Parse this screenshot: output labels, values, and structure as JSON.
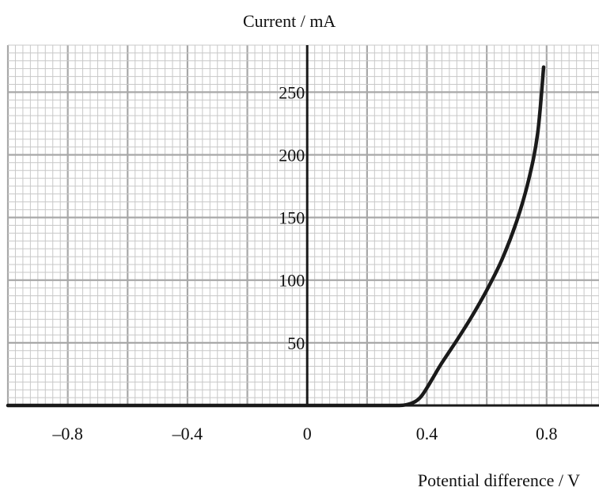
{
  "chart_data": {
    "type": "line",
    "title": "",
    "xlabel": "Potential difference / V",
    "ylabel": "Current / mA",
    "xlim": [
      -1.0,
      0.975
    ],
    "ylim": [
      0,
      287.5
    ],
    "x_ticks": [
      -0.8,
      -0.4,
      0,
      0.4,
      0.8
    ],
    "x_tick_labels": [
      "–0.8",
      "–0.4",
      "0",
      "0.4",
      "0.8"
    ],
    "y_ticks": [
      50,
      100,
      150,
      200,
      250
    ],
    "y_tick_labels": [
      "50",
      "100",
      "150",
      "200",
      "250"
    ],
    "grid": true,
    "grid_minor_x": 0.025,
    "grid_minor_y": 6.25,
    "grid_major_x": 0.2,
    "grid_major_y": 50,
    "colors": {
      "curve": "#1a1a1a",
      "grid_minor": "#c8c8c8",
      "grid_major": "#a8a8a8",
      "axis": "#1a1a1a"
    },
    "series": [
      {
        "name": "",
        "x": [
          -1.0,
          -0.5,
          0,
          0.2,
          0.3,
          0.33,
          0.36,
          0.38,
          0.4,
          0.42,
          0.45,
          0.5,
          0.55,
          0.6,
          0.65,
          0.7,
          0.74,
          0.77,
          0.79
        ],
        "y": [
          0,
          0,
          0,
          0,
          0,
          0.5,
          3,
          7,
          14,
          22,
          34,
          52,
          71,
          92,
          116,
          147,
          180,
          217,
          270
        ]
      }
    ]
  }
}
